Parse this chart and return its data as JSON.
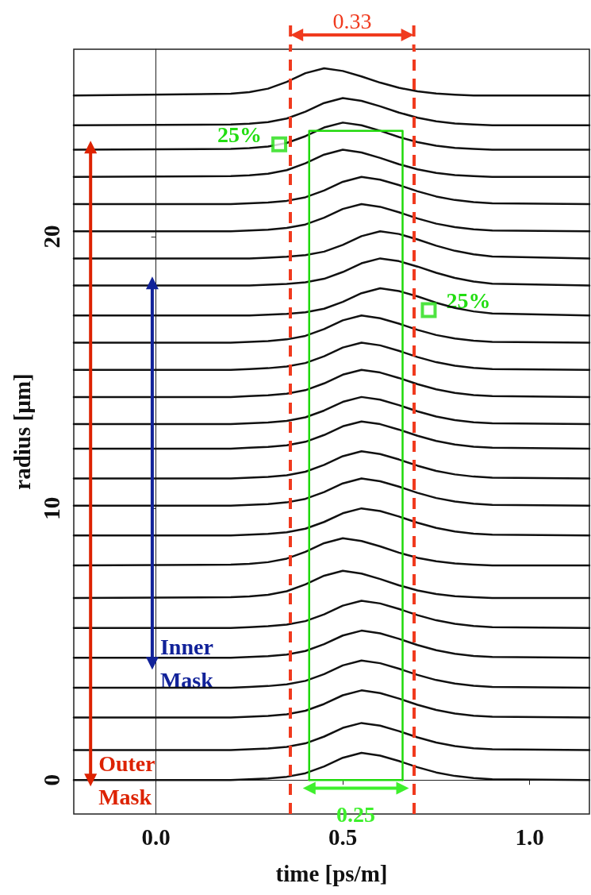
{
  "chart_data": {
    "type": "line",
    "xlabel": "time [ps/m]",
    "ylabel": "radius [µm]",
    "xlim": [
      -0.22,
      1.16
    ],
    "ylim": [
      -1.25,
      26.9
    ],
    "xticks": [
      {
        "value": 0,
        "label": "0.0"
      },
      {
        "value": 0.5,
        "label": "0.5"
      },
      {
        "value": 1,
        "label": "1.0"
      }
    ],
    "yticks": [
      0,
      10,
      20
    ],
    "marker": "none",
    "line_style": "solid",
    "x": [
      -0.22,
      0.2,
      0.25,
      0.3,
      0.35,
      0.4,
      0.45,
      0.5,
      0.55,
      0.6,
      0.65,
      0.7,
      0.75,
      0.8,
      0.85,
      0.9,
      1.16
    ],
    "series": [
      {
        "color": "#111111",
        "values": [
          25.2,
          25.26,
          25.32,
          25.45,
          25.7,
          26.02,
          26.2,
          26.1,
          25.9,
          25.67,
          25.48,
          25.35,
          25.27,
          25.23,
          25.2,
          25.2,
          25.2
        ]
      },
      {
        "color": "#111111",
        "values": [
          24.1,
          24.13,
          24.16,
          24.22,
          24.35,
          24.6,
          24.92,
          25.1,
          25.0,
          24.8,
          24.57,
          24.38,
          24.25,
          24.17,
          24.13,
          24.1,
          24.1
        ]
      },
      {
        "color": "#111111",
        "values": [
          23.2,
          23.23,
          23.26,
          23.32,
          23.45,
          23.7,
          24.02,
          24.2,
          24.1,
          23.9,
          23.67,
          23.48,
          23.35,
          23.27,
          23.23,
          23.2,
          23.2
        ]
      },
      {
        "color": "#111111",
        "values": [
          22.2,
          22.23,
          22.26,
          22.32,
          22.45,
          22.7,
          23.02,
          23.2,
          23.1,
          22.9,
          22.67,
          22.48,
          22.35,
          22.27,
          22.23,
          22.2,
          22.2
        ]
      },
      {
        "color": "#111111",
        "values": [
          21.2,
          21.2,
          21.23,
          21.26,
          21.32,
          21.45,
          21.7,
          22.02,
          22.2,
          22.1,
          21.9,
          21.67,
          21.48,
          21.35,
          21.27,
          21.23,
          21.2
        ]
      },
      {
        "color": "#111111",
        "values": [
          20.2,
          20.2,
          20.23,
          20.26,
          20.32,
          20.45,
          20.7,
          21.02,
          21.2,
          21.1,
          20.9,
          20.67,
          20.48,
          20.35,
          20.27,
          20.23,
          20.2
        ]
      },
      {
        "color": "#111111",
        "values": [
          19.2,
          19.2,
          19.2,
          19.23,
          19.26,
          19.32,
          19.45,
          19.7,
          20.02,
          20.2,
          20.1,
          19.9,
          19.67,
          19.48,
          19.35,
          19.27,
          19.2
        ]
      },
      {
        "color": "#111111",
        "values": [
          18.2,
          18.2,
          18.2,
          18.23,
          18.26,
          18.32,
          18.45,
          18.7,
          19.02,
          19.2,
          19.1,
          18.9,
          18.67,
          18.48,
          18.35,
          18.27,
          18.2
        ]
      },
      {
        "color": "#111111",
        "values": [
          17.1,
          17.1,
          17.1,
          17.13,
          17.16,
          17.22,
          17.35,
          17.6,
          17.92,
          18.1,
          18.0,
          17.8,
          17.57,
          17.38,
          17.25,
          17.17,
          17.1
        ]
      },
      {
        "color": "#111111",
        "values": [
          16.1,
          16.1,
          16.13,
          16.16,
          16.22,
          16.35,
          16.6,
          16.92,
          17.1,
          17.0,
          16.8,
          16.57,
          16.38,
          16.25,
          16.17,
          16.13,
          16.1
        ]
      },
      {
        "color": "#111111",
        "values": [
          15.1,
          15.1,
          15.13,
          15.16,
          15.22,
          15.35,
          15.6,
          15.92,
          16.1,
          16.0,
          15.8,
          15.57,
          15.38,
          15.25,
          15.17,
          15.13,
          15.1
        ]
      },
      {
        "color": "#111111",
        "values": [
          14.1,
          14.1,
          14.13,
          14.16,
          14.22,
          14.35,
          14.6,
          14.92,
          15.1,
          15.0,
          14.8,
          14.57,
          14.38,
          14.25,
          14.17,
          14.13,
          14.1
        ]
      },
      {
        "color": "#111111",
        "values": [
          13.1,
          13.1,
          13.13,
          13.16,
          13.22,
          13.35,
          13.6,
          13.92,
          14.1,
          14.0,
          13.8,
          13.57,
          13.38,
          13.25,
          13.17,
          13.13,
          13.1
        ]
      },
      {
        "color": "#111111",
        "values": [
          12.2,
          12.2,
          12.23,
          12.26,
          12.32,
          12.45,
          12.7,
          13.02,
          13.2,
          13.1,
          12.9,
          12.67,
          12.48,
          12.35,
          12.27,
          12.23,
          12.2
        ]
      },
      {
        "color": "#111111",
        "values": [
          11.1,
          11.1,
          11.13,
          11.16,
          11.22,
          11.35,
          11.6,
          11.92,
          12.1,
          12.0,
          11.8,
          11.57,
          11.38,
          11.25,
          11.17,
          11.13,
          11.1
        ]
      },
      {
        "color": "#111111",
        "values": [
          10.1,
          10.1,
          10.13,
          10.16,
          10.22,
          10.35,
          10.6,
          10.92,
          11.1,
          11.0,
          10.8,
          10.57,
          10.38,
          10.25,
          10.17,
          10.13,
          10.1
        ]
      },
      {
        "color": "#111111",
        "values": [
          9.0,
          9.0,
          9.03,
          9.06,
          9.12,
          9.25,
          9.5,
          9.82,
          10.0,
          9.9,
          9.7,
          9.47,
          9.28,
          9.15,
          9.07,
          9.03,
          9.0
        ]
      },
      {
        "color": "#111111",
        "values": [
          7.9,
          7.93,
          7.96,
          8.02,
          8.15,
          8.4,
          8.72,
          8.9,
          8.8,
          8.6,
          8.37,
          8.18,
          8.05,
          7.97,
          7.93,
          7.9,
          7.9
        ]
      },
      {
        "color": "#111111",
        "values": [
          6.7,
          6.73,
          6.76,
          6.82,
          6.95,
          7.2,
          7.52,
          7.7,
          7.6,
          7.4,
          7.17,
          6.98,
          6.85,
          6.77,
          6.73,
          6.7,
          6.7
        ]
      },
      {
        "color": "#111111",
        "values": [
          5.6,
          5.6,
          5.63,
          5.66,
          5.72,
          5.85,
          6.1,
          6.42,
          6.6,
          6.5,
          6.3,
          6.07,
          5.88,
          5.75,
          5.67,
          5.63,
          5.6
        ]
      },
      {
        "color": "#111111",
        "values": [
          4.5,
          4.5,
          4.53,
          4.56,
          4.62,
          4.75,
          5.0,
          5.32,
          5.5,
          5.4,
          5.2,
          4.97,
          4.78,
          4.65,
          4.57,
          4.53,
          4.5
        ]
      },
      {
        "color": "#111111",
        "values": [
          3.4,
          3.4,
          3.43,
          3.46,
          3.52,
          3.65,
          3.9,
          4.22,
          4.4,
          4.3,
          4.1,
          3.87,
          3.68,
          3.55,
          3.47,
          3.43,
          3.4
        ]
      },
      {
        "color": "#111111",
        "values": [
          2.3,
          2.3,
          2.33,
          2.36,
          2.42,
          2.55,
          2.8,
          3.12,
          3.3,
          3.2,
          3.0,
          2.77,
          2.58,
          2.45,
          2.37,
          2.33,
          2.3
        ]
      },
      {
        "color": "#111111",
        "values": [
          1.1,
          1.1,
          1.13,
          1.16,
          1.22,
          1.35,
          1.6,
          1.92,
          2.1,
          2.0,
          1.8,
          1.57,
          1.38,
          1.25,
          1.17,
          1.13,
          1.1
        ]
      },
      {
        "color": "#111111",
        "values": [
          0,
          0,
          0.03,
          0.06,
          0.12,
          0.25,
          0.5,
          0.82,
          1.0,
          0.9,
          0.7,
          0.47,
          0.28,
          0.15,
          0.07,
          0.03,
          0
        ]
      },
      {
        "type": "line",
        "color": "#1fd90a",
        "x": [
          0.41,
          0.41,
          0.66,
          0.66
        ],
        "values": [
          0,
          23.9,
          23.9,
          0
        ]
      },
      {
        "type": "line",
        "color": "#1fd90a",
        "x": [
          0.41,
          0.66
        ],
        "values": [
          0,
          0
        ]
      },
      {
        "type": "line",
        "marker": "triangle",
        "color": "#dd2200",
        "x": [
          -0.175,
          -0.175
        ],
        "values": [
          23.3,
          0
        ]
      },
      {
        "type": "line",
        "marker": "triangle",
        "color": "#112299",
        "x": [
          -0.01,
          -0.01
        ],
        "values": [
          18.3,
          4.3
        ]
      },
      {
        "type": "line",
        "marker": "triangle",
        "color": "#3ef02c",
        "x": [
          0.41,
          0.66
        ],
        "values": [
          -0.3,
          -0.3
        ]
      },
      {
        "type": "scatter",
        "marker": "square",
        "color": "#22dd11",
        "x": [
          0.33,
          0.73
        ],
        "values": [
          23.4,
          17.3
        ]
      }
    ],
    "ref_lines": [
      {
        "axis": "x",
        "value": 0.36,
        "color": "#f03a1e",
        "line_style": "dashed"
      },
      {
        "axis": "x",
        "value": 0.69,
        "color": "#f03a1e",
        "line_style": "dashed"
      }
    ],
    "annotations": [
      "0.33",
      {
        "text": "25%",
        "x": 0.33,
        "y": 23.4
      },
      {
        "text": "25%",
        "x": 0.73,
        "y": 17.3
      },
      {
        "text": "Inner Mask",
        "x": -0.01,
        "y": 4.3
      },
      {
        "text": "Outer Mask",
        "x": -0.175,
        "y": 0
      },
      {
        "text": "0.25",
        "x": 0.535,
        "y": -0.3
      }
    ]
  }
}
